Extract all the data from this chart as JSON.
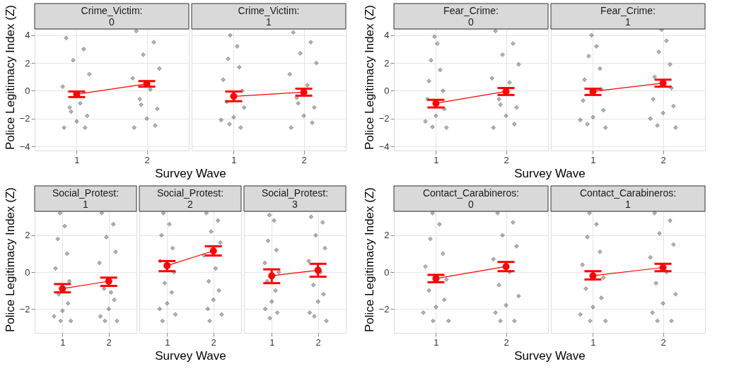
{
  "chart_data": [
    {
      "type": "scatter",
      "title": "Crime_Victim:\n0",
      "xlabel": "Survey Wave",
      "ylabel": "Police Legitimacy Index (Z)",
      "xlim": [
        0.4,
        2.6
      ],
      "xticks": [
        1,
        2
      ],
      "ylim": [
        -4.3,
        4.45
      ],
      "yticks": [
        -4,
        -2,
        0,
        2,
        4
      ],
      "grid": true,
      "series": [
        {
          "type": "scatter",
          "color": "#000000",
          "marker": "diamond",
          "x": [
            0.85,
            1.1,
            0.95,
            1.18,
            0.8,
            1.05,
            0.9,
            1.15,
            1.0,
            0.82,
            1.12,
            0.92,
            1.85,
            2.1,
            1.95,
            2.18,
            1.8,
            2.05,
            1.9,
            2.15,
            2.0,
            1.82,
            2.12,
            1.92
          ],
          "values": [
            3.8,
            3.0,
            2.2,
            1.2,
            0.3,
            -0.9,
            -1.2,
            -1.8,
            -2.2,
            -2.65,
            -2.65,
            -1.5,
            4.3,
            3.5,
            2.6,
            1.6,
            0.9,
            0.1,
            -0.6,
            -1.3,
            -2.0,
            -2.65,
            -2.5,
            -1.0
          ]
        },
        {
          "type": "line",
          "color": "#ff0000",
          "marker": "circle",
          "x": [
            1,
            2
          ],
          "values": [
            -0.25,
            0.5
          ],
          "errors": [
            [
              -0.45,
              -0.05
            ],
            [
              0.3,
              0.7
            ]
          ]
        }
      ]
    },
    {
      "type": "scatter",
      "title": "Crime_Victim:\n1",
      "tick_labels": "x",
      "xlim": [
        0.4,
        2.6
      ],
      "xticks": [
        1,
        2
      ],
      "ylim": [
        -4.3,
        4.45
      ],
      "yticks": [
        -4,
        -2,
        0,
        2,
        4
      ],
      "grid": true,
      "series": [
        {
          "type": "scatter",
          "color": "#000000",
          "marker": "diamond",
          "x": [
            0.95,
            1.05,
            0.92,
            1.08,
            0.85,
            1.12,
            0.9,
            1.15,
            1.0,
            0.82,
            1.1,
            0.94,
            1.85,
            2.1,
            1.95,
            2.18,
            1.8,
            2.05,
            1.9,
            2.15,
            2.0,
            1.82,
            2.12,
            1.92
          ],
          "values": [
            4.0,
            3.2,
            2.3,
            1.7,
            0.8,
            0.0,
            -0.8,
            -1.2,
            -1.9,
            -2.1,
            -2.65,
            -2.4,
            4.2,
            3.5,
            2.7,
            2.0,
            1.2,
            0.4,
            -0.5,
            -1.2,
            -1.8,
            -2.65,
            -2.3,
            -0.9
          ]
        },
        {
          "type": "line",
          "color": "#ff0000",
          "marker": "circle",
          "x": [
            1,
            2
          ],
          "values": [
            -0.4,
            -0.1
          ],
          "errors": [
            [
              -0.75,
              -0.05
            ],
            [
              -0.35,
              0.15
            ]
          ]
        }
      ]
    },
    {
      "type": "scatter",
      "title": "Fear_Crime:\n0",
      "xlabel": "Survey Wave",
      "ylabel": "Police Legitimacy Index (Z)",
      "xlim": [
        0.4,
        2.6
      ],
      "xticks": [
        1,
        2
      ],
      "ylim": [
        -4.3,
        4.45
      ],
      "yticks": [
        -4,
        -2,
        0,
        2,
        4
      ],
      "grid": true,
      "series": [
        {
          "type": "scatter",
          "color": "#000000",
          "marker": "diamond",
          "x": [
            0.98,
            1.02,
            0.93,
            1.06,
            0.9,
            1.1,
            0.88,
            1.12,
            1.0,
            0.85,
            1.15,
            0.95,
            1.85,
            2.1,
            1.95,
            2.18,
            1.8,
            2.05,
            1.9,
            2.15,
            2.0,
            1.82,
            2.12,
            1.92
          ],
          "values": [
            3.9,
            3.4,
            2.2,
            1.5,
            0.7,
            0.0,
            -0.6,
            -1.3,
            -1.8,
            -2.2,
            -2.65,
            -2.6,
            4.3,
            3.4,
            2.6,
            1.9,
            0.9,
            0.6,
            -0.6,
            -1.2,
            -1.8,
            -2.65,
            -2.4,
            -1.0
          ]
        },
        {
          "type": "line",
          "color": "#ff0000",
          "marker": "circle",
          "x": [
            1,
            2
          ],
          "values": [
            -0.9,
            -0.05
          ],
          "errors": [
            [
              -1.2,
              -0.65
            ],
            [
              -0.3,
              0.2
            ]
          ]
        }
      ]
    },
    {
      "type": "scatter",
      "title": "Fear_Crime:\n1",
      "tick_labels": "x",
      "xlim": [
        0.4,
        2.6
      ],
      "xticks": [
        1,
        2
      ],
      "ylim": [
        -4.3,
        4.45
      ],
      "yticks": [
        -4,
        -2,
        0,
        2,
        4
      ],
      "grid": true,
      "series": [
        {
          "type": "scatter",
          "color": "#000000",
          "marker": "diamond",
          "x": [
            0.98,
            1.05,
            0.94,
            1.1,
            0.88,
            1.12,
            0.86,
            1.15,
            1.0,
            0.82,
            1.18,
            0.92,
            1.98,
            2.05,
            1.94,
            2.1,
            1.88,
            2.12,
            1.86,
            2.15,
            2.0,
            1.82,
            2.18,
            1.92
          ],
          "values": [
            4.0,
            3.2,
            2.5,
            1.6,
            0.8,
            0.1,
            -0.7,
            -1.4,
            -1.9,
            -2.1,
            -2.65,
            -2.4,
            4.4,
            3.6,
            2.8,
            1.9,
            1.0,
            0.2,
            -0.6,
            -1.1,
            -1.6,
            -2.0,
            -2.65,
            -2.5
          ]
        },
        {
          "type": "line",
          "color": "#ff0000",
          "marker": "circle",
          "x": [
            1,
            2
          ],
          "values": [
            -0.05,
            0.55
          ],
          "errors": [
            [
              -0.3,
              0.15
            ],
            [
              0.3,
              0.8
            ]
          ]
        }
      ]
    },
    {
      "type": "scatter",
      "title": "Social_Protest:\n1",
      "xlabel": "Survey Wave",
      "ylabel": "Police Legitimacy Index (Z)",
      "xlim": [
        0.4,
        2.6
      ],
      "xticks": [
        1,
        2
      ],
      "ylim": [
        -3.3,
        3.3
      ],
      "yticks": [
        -2,
        0,
        2
      ],
      "grid": true,
      "series": [
        {
          "type": "scatter",
          "color": "#000000",
          "marker": "diamond",
          "x": [
            0.95,
            1.05,
            0.9,
            1.1,
            0.85,
            1.15,
            0.92,
            1.12,
            1.0,
            0.82,
            1.18,
            0.96,
            1.85,
            2.1,
            1.95,
            2.15,
            1.8,
            2.05,
            1.9,
            2.12,
            2.0,
            1.82,
            2.18,
            1.92
          ],
          "values": [
            3.2,
            2.5,
            1.8,
            1.0,
            0.2,
            -0.5,
            -1.2,
            -1.7,
            -2.1,
            -2.4,
            -2.65,
            -2.65,
            3.2,
            2.6,
            1.9,
            1.1,
            0.5,
            -1.1,
            -0.9,
            -1.5,
            -2.0,
            -2.4,
            -2.65,
            -2.65
          ]
        },
        {
          "type": "line",
          "color": "#ff0000",
          "marker": "circle",
          "x": [
            1,
            2
          ],
          "values": [
            -0.9,
            -0.5
          ],
          "errors": [
            [
              -1.1,
              -0.65
            ],
            [
              -0.75,
              -0.3
            ]
          ]
        }
      ]
    },
    {
      "type": "scatter",
      "title": "Social_Protest:\n2",
      "tick_labels": "x",
      "xlim": [
        0.4,
        2.6
      ],
      "xticks": [
        1,
        2
      ],
      "ylim": [
        -3.3,
        3.3
      ],
      "yticks": [
        -2,
        0,
        2
      ],
      "grid": true,
      "series": [
        {
          "type": "scatter",
          "color": "#000000",
          "marker": "diamond",
          "x": [
            0.92,
            1.05,
            0.88,
            1.12,
            0.85,
            1.15,
            0.95,
            1.1,
            1.0,
            0.84,
            1.18,
            0.9,
            1.85,
            2.1,
            1.95,
            2.15,
            1.8,
            2.05,
            1.9,
            2.12,
            2.0,
            1.88,
            2.18,
            1.92
          ],
          "values": [
            3.2,
            2.6,
            2.0,
            1.3,
            0.6,
            0.0,
            -0.6,
            -1.1,
            -1.7,
            -2.0,
            -2.3,
            -2.65,
            3.2,
            2.8,
            2.2,
            1.6,
            0.9,
            0.2,
            -0.5,
            -1.0,
            -1.5,
            -2.0,
            -2.3,
            -2.65
          ]
        },
        {
          "type": "line",
          "color": "#ff0000",
          "marker": "circle",
          "x": [
            1,
            2
          ],
          "values": [
            0.35,
            1.15
          ],
          "errors": [
            [
              0.05,
              0.6
            ],
            [
              0.9,
              1.4
            ]
          ]
        }
      ]
    },
    {
      "type": "scatter",
      "title": "Social_Protest:\n3",
      "tick_labels": "x",
      "xlim": [
        0.4,
        2.6
      ],
      "xticks": [
        1,
        2
      ],
      "ylim": [
        -3.3,
        3.3
      ],
      "yticks": [
        -2,
        0,
        2
      ],
      "grid": true,
      "series": [
        {
          "type": "scatter",
          "color": "#000000",
          "marker": "diamond",
          "x": [
            0.95,
            1.05,
            0.92,
            1.1,
            0.85,
            1.15,
            0.9,
            1.08,
            1.0,
            0.86,
            1.12,
            0.96,
            1.85,
            2.1,
            1.95,
            2.15,
            1.8,
            2.05,
            1.9,
            2.12,
            2.0,
            1.82,
            2.18,
            1.92
          ],
          "values": [
            3.1,
            2.8,
            1.7,
            1.2,
            0.5,
            0.0,
            -0.5,
            -1.0,
            -1.6,
            -2.0,
            -2.2,
            -2.5,
            3.0,
            2.7,
            2.0,
            1.3,
            0.6,
            0.0,
            -0.7,
            -1.2,
            -1.6,
            -2.2,
            -2.65,
            -2.4
          ]
        },
        {
          "type": "line",
          "color": "#ff0000",
          "marker": "circle",
          "x": [
            1,
            2
          ],
          "values": [
            -0.2,
            0.1
          ],
          "errors": [
            [
              -0.6,
              0.15
            ],
            [
              -0.25,
              0.45
            ]
          ]
        }
      ]
    },
    {
      "type": "scatter",
      "title": "Contact_Carabineros:\n0",
      "xlabel": "Survey Wave",
      "ylabel": "Police Legitimacy Index (Z)",
      "xlim": [
        0.4,
        2.6
      ],
      "xticks": [
        1,
        2
      ],
      "ylim": [
        -3.3,
        3.3
      ],
      "yticks": [
        -2,
        0,
        2
      ],
      "grid": true,
      "series": [
        {
          "type": "scatter",
          "color": "#000000",
          "marker": "diamond",
          "x": [
            0.95,
            1.05,
            0.92,
            1.1,
            0.85,
            1.15,
            0.9,
            1.12,
            1.0,
            0.82,
            1.18,
            0.96,
            1.88,
            2.1,
            1.95,
            2.15,
            1.82,
            2.05,
            1.9,
            2.18,
            2.0,
            1.85,
            2.12,
            1.92
          ],
          "values": [
            3.2,
            2.6,
            1.8,
            1.0,
            0.3,
            -0.4,
            -1.0,
            -1.5,
            -1.9,
            -2.2,
            -2.65,
            -2.65,
            3.2,
            2.7,
            2.0,
            1.4,
            0.7,
            0.0,
            -0.7,
            -1.3,
            -1.8,
            -2.2,
            -2.65,
            -2.65
          ]
        },
        {
          "type": "line",
          "color": "#ff0000",
          "marker": "circle",
          "x": [
            1,
            2
          ],
          "values": [
            -0.35,
            0.3
          ],
          "errors": [
            [
              -0.55,
              -0.15
            ],
            [
              0.05,
              0.55
            ]
          ]
        }
      ]
    },
    {
      "type": "scatter",
      "title": "Contact_Carabineros:\n1",
      "tick_labels": "x",
      "xlim": [
        0.4,
        2.6
      ],
      "xticks": [
        1,
        2
      ],
      "ylim": [
        -3.3,
        3.3
      ],
      "yticks": [
        -2,
        0,
        2
      ],
      "grid": true,
      "series": [
        {
          "type": "scatter",
          "color": "#000000",
          "marker": "diamond",
          "x": [
            0.95,
            1.05,
            0.92,
            1.1,
            0.85,
            1.15,
            0.9,
            1.12,
            1.0,
            0.82,
            1.18,
            0.96,
            1.88,
            2.1,
            1.95,
            2.15,
            1.82,
            2.05,
            1.9,
            2.18,
            2.0,
            1.85,
            2.12,
            1.92
          ],
          "values": [
            3.2,
            2.6,
            1.9,
            1.1,
            0.4,
            -0.3,
            -0.9,
            -1.4,
            -1.9,
            -2.3,
            -2.65,
            -2.65,
            3.2,
            2.8,
            2.1,
            1.5,
            0.8,
            0.0,
            -0.6,
            -1.2,
            -1.7,
            -2.2,
            -2.65,
            -2.65
          ]
        },
        {
          "type": "line",
          "color": "#ff0000",
          "marker": "circle",
          "x": [
            1,
            2
          ],
          "values": [
            -0.2,
            0.25
          ],
          "errors": [
            [
              -0.4,
              0.05
            ],
            [
              0.05,
              0.45
            ]
          ]
        }
      ]
    }
  ]
}
